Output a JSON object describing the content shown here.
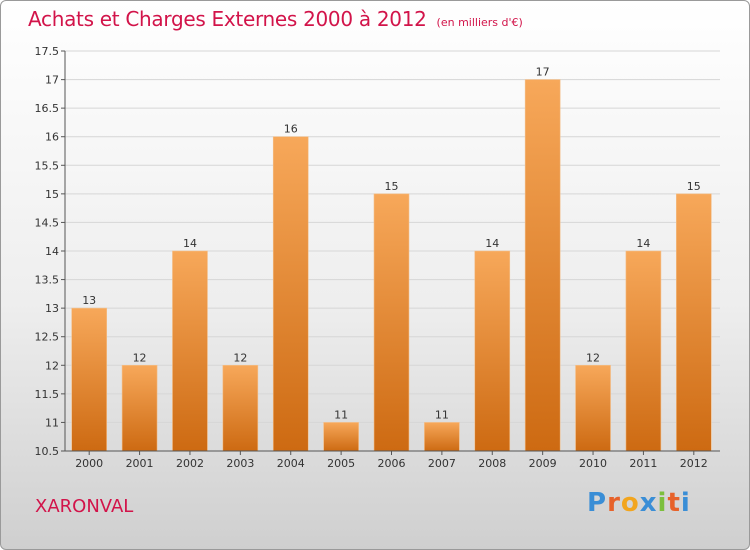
{
  "header": {
    "title": "Achats et Charges Externes 2000 à 2012",
    "unit": "(en milliers d'€)"
  },
  "footer": {
    "location": "XARONVAL",
    "logo": [
      "P",
      "r",
      "o",
      "x",
      "i",
      "t",
      "i"
    ]
  },
  "colors": {
    "title": "#d2144a",
    "bar_top": "#f7a85a",
    "bar_bottom": "#cd6a12",
    "logo": [
      "#3a8ed6",
      "#e7622a",
      "#f2a51e",
      "#3a8ed6",
      "#7cbf3c",
      "#e7622a",
      "#3a8ed6"
    ]
  },
  "chart_data": {
    "type": "bar",
    "categories": [
      "2000",
      "2001",
      "2002",
      "2003",
      "2004",
      "2005",
      "2006",
      "2007",
      "2008",
      "2009",
      "2010",
      "2011",
      "2012"
    ],
    "values": [
      13,
      12,
      14,
      12,
      16,
      11,
      15,
      11,
      14,
      17,
      12,
      14,
      15
    ],
    "data_labels": [
      "13",
      "12",
      "14",
      "12",
      "16",
      "11",
      "15",
      "11",
      "14",
      "17",
      "12",
      "14",
      "15"
    ],
    "ylim": [
      10.5,
      17.5
    ],
    "yticks": [
      10.5,
      11,
      11.5,
      12,
      12.5,
      13,
      13.5,
      14,
      14.5,
      15,
      15.5,
      16,
      16.5,
      17,
      17.5
    ],
    "ytick_labels": [
      "10.5",
      "11",
      "11.5",
      "12",
      "12.5",
      "13",
      "13.5",
      "14",
      "14.5",
      "15",
      "15.5",
      "16",
      "16.5",
      "17",
      "17.5"
    ],
    "grid": true,
    "title": "Achats et Charges Externes 2000 à 2012",
    "xlabel": "",
    "ylabel": ""
  }
}
